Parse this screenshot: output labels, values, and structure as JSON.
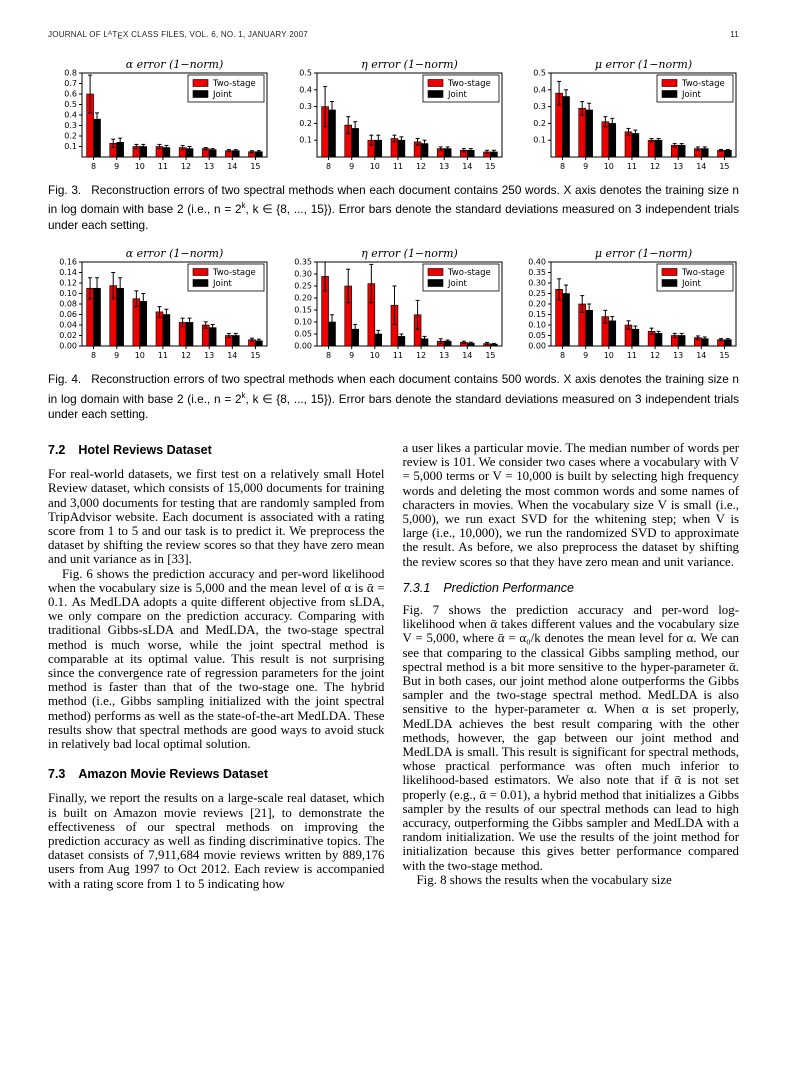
{
  "header": {
    "pre": "JOURNAL OF L",
    "a": "A",
    "t": "T",
    "e": "E",
    "post": "X CLASS FILES, VOL. 6, NO. 1, JANUARY 2007",
    "page": "11"
  },
  "figures": {
    "fig3": {
      "label": "Fig. 3.",
      "cap1": "Reconstruction errors of two spectral methods when each document contains 250 words. X axis denotes the training size n in log domain with base 2 (i.e., n = 2",
      "cap_sup": "k",
      "cap2": ", k ∈ {8, ..., 15}). Error bars denote the standard deviations measured on 3 independent trials under each setting."
    },
    "fig4": {
      "label": "Fig. 4.",
      "cap1": "Reconstruction errors of two spectral methods when each document contains 500 words. X axis denotes the training size n in log domain with base 2 (i.e., n = 2",
      "cap_sup": "k",
      "cap2": ", k ∈ {8, ..., 15}). Error bars denote the standard deviations measured on 3 independent trials under each setting."
    }
  },
  "chart_data": [
    {
      "figure": "fig3",
      "name": "chart-fig3-alpha-error",
      "type": "bar",
      "title": "α  error  (1−norm)",
      "categories": [
        "8",
        "9",
        "10",
        "11",
        "12",
        "13",
        "14",
        "15"
      ],
      "ylim": [
        0,
        0.8
      ],
      "yticks": [
        "0.1",
        "0.2",
        "0.3",
        "0.4",
        "0.5",
        "0.6",
        "0.7",
        "0.8"
      ],
      "legend_position": "top-right",
      "grid": false,
      "series": [
        {
          "name": "Two-stage",
          "color": "#ee0000",
          "values": [
            0.6,
            0.13,
            0.1,
            0.1,
            0.09,
            0.08,
            0.06,
            0.05
          ],
          "errors": [
            0.18,
            0.04,
            0.02,
            0.02,
            0.02,
            0.01,
            0.01,
            0.01
          ]
        },
        {
          "name": "Joint",
          "color": "#000000",
          "values": [
            0.36,
            0.14,
            0.1,
            0.09,
            0.08,
            0.07,
            0.06,
            0.05
          ],
          "errors": [
            0.06,
            0.04,
            0.02,
            0.02,
            0.02,
            0.01,
            0.01,
            0.01
          ]
        }
      ]
    },
    {
      "figure": "fig3",
      "name": "chart-fig3-eta-error",
      "type": "bar",
      "title": "η  error  (1−norm)",
      "categories": [
        "8",
        "9",
        "10",
        "11",
        "12",
        "13",
        "14",
        "15"
      ],
      "ylim": [
        0,
        0.5
      ],
      "yticks": [
        "0.1",
        "0.2",
        "0.3",
        "0.4",
        "0.5"
      ],
      "legend_position": "top-right",
      "grid": false,
      "series": [
        {
          "name": "Two-stage",
          "color": "#ee0000",
          "values": [
            0.3,
            0.19,
            0.1,
            0.11,
            0.09,
            0.05,
            0.04,
            0.03
          ],
          "errors": [
            0.12,
            0.05,
            0.03,
            0.02,
            0.02,
            0.01,
            0.01,
            0.01
          ]
        },
        {
          "name": "Joint",
          "color": "#000000",
          "values": [
            0.28,
            0.17,
            0.1,
            0.1,
            0.08,
            0.05,
            0.04,
            0.03
          ],
          "errors": [
            0.05,
            0.04,
            0.03,
            0.02,
            0.02,
            0.01,
            0.01,
            0.01
          ]
        }
      ]
    },
    {
      "figure": "fig3",
      "name": "chart-fig3-mu-error",
      "type": "bar",
      "title": "μ  error  (1−norm)",
      "categories": [
        "8",
        "9",
        "10",
        "11",
        "12",
        "13",
        "14",
        "15"
      ],
      "ylim": [
        0,
        0.5
      ],
      "yticks": [
        "0.1",
        "0.2",
        "0.3",
        "0.4",
        "0.5"
      ],
      "legend_position": "top-right",
      "grid": false,
      "series": [
        {
          "name": "Two-stage",
          "color": "#ee0000",
          "values": [
            0.38,
            0.29,
            0.21,
            0.15,
            0.1,
            0.07,
            0.05,
            0.04
          ],
          "errors": [
            0.07,
            0.04,
            0.03,
            0.02,
            0.01,
            0.01,
            0.01,
            0.005
          ]
        },
        {
          "name": "Joint",
          "color": "#000000",
          "values": [
            0.36,
            0.28,
            0.2,
            0.14,
            0.1,
            0.07,
            0.05,
            0.04
          ],
          "errors": [
            0.04,
            0.04,
            0.03,
            0.02,
            0.01,
            0.01,
            0.01,
            0.005
          ]
        }
      ]
    },
    {
      "figure": "fig4",
      "name": "chart-fig4-alpha-error",
      "type": "bar",
      "title": "α  error  (1−norm)",
      "categories": [
        "8",
        "9",
        "10",
        "11",
        "12",
        "13",
        "14",
        "15"
      ],
      "ylim": [
        0,
        0.16
      ],
      "yticks": [
        "0.00",
        "0.02",
        "0.04",
        "0.06",
        "0.08",
        "0.10",
        "0.12",
        "0.14",
        "0.16"
      ],
      "legend_position": "top-right",
      "grid": false,
      "series": [
        {
          "name": "Two-stage",
          "color": "#ee0000",
          "values": [
            0.11,
            0.115,
            0.09,
            0.065,
            0.045,
            0.04,
            0.02,
            0.012
          ],
          "errors": [
            0.02,
            0.025,
            0.015,
            0.01,
            0.008,
            0.006,
            0.004,
            0.003
          ]
        },
        {
          "name": "Joint",
          "color": "#000000",
          "values": [
            0.11,
            0.11,
            0.085,
            0.06,
            0.045,
            0.035,
            0.02,
            0.01
          ],
          "errors": [
            0.02,
            0.02,
            0.015,
            0.01,
            0.008,
            0.006,
            0.004,
            0.003
          ]
        }
      ]
    },
    {
      "figure": "fig4",
      "name": "chart-fig4-eta-error",
      "type": "bar",
      "title": "η  error  (1−norm)",
      "categories": [
        "8",
        "9",
        "10",
        "11",
        "12",
        "13",
        "14",
        "15"
      ],
      "ylim": [
        0,
        0.35
      ],
      "yticks": [
        "0.00",
        "0.05",
        "0.10",
        "0.15",
        "0.20",
        "0.25",
        "0.30",
        "0.35"
      ],
      "legend_position": "top-right",
      "grid": false,
      "series": [
        {
          "name": "Two-stage",
          "color": "#ee0000",
          "values": [
            0.29,
            0.25,
            0.26,
            0.17,
            0.13,
            0.02,
            0.015,
            0.01
          ],
          "errors": [
            0.06,
            0.07,
            0.08,
            0.08,
            0.06,
            0.01,
            0.005,
            0.005
          ]
        },
        {
          "name": "Joint",
          "color": "#000000",
          "values": [
            0.1,
            0.07,
            0.05,
            0.04,
            0.03,
            0.02,
            0.012,
            0.008
          ],
          "errors": [
            0.03,
            0.02,
            0.015,
            0.01,
            0.01,
            0.005,
            0.004,
            0.003
          ]
        }
      ]
    },
    {
      "figure": "fig4",
      "name": "chart-fig4-mu-error",
      "type": "bar",
      "title": "μ  error  (1−norm)",
      "categories": [
        "8",
        "9",
        "10",
        "11",
        "12",
        "13",
        "14",
        "15"
      ],
      "ylim": [
        0,
        0.4
      ],
      "yticks": [
        "0.00",
        "0.05",
        "0.10",
        "0.15",
        "0.20",
        "0.25",
        "0.30",
        "0.35",
        "0.40"
      ],
      "legend_position": "top-right",
      "grid": false,
      "series": [
        {
          "name": "Two-stage",
          "color": "#ee0000",
          "values": [
            0.27,
            0.2,
            0.14,
            0.1,
            0.07,
            0.05,
            0.04,
            0.03
          ],
          "errors": [
            0.05,
            0.04,
            0.03,
            0.02,
            0.015,
            0.01,
            0.008,
            0.005
          ]
        },
        {
          "name": "Joint",
          "color": "#000000",
          "values": [
            0.25,
            0.17,
            0.12,
            0.08,
            0.06,
            0.05,
            0.035,
            0.03
          ],
          "errors": [
            0.04,
            0.03,
            0.02,
            0.015,
            0.01,
            0.01,
            0.008,
            0.005
          ]
        }
      ]
    }
  ],
  "columns": {
    "left": [
      {
        "kind": "h2",
        "num": "7.2",
        "text": "Hotel Reviews Dataset"
      },
      {
        "kind": "p",
        "indent": false,
        "text": "For real-world datasets, we first test on a relatively small Hotel Review dataset, which consists of 15,000 documents for training and 3,000 documents for testing that are randomly sampled from TripAdvisor website. Each document is associated with a rating score from 1 to 5 and our task is to predict it. We preprocess the dataset by shifting the review scores so that they have zero mean and unit variance as in [33]."
      },
      {
        "kind": "p",
        "indent": true,
        "text": "Fig. 6 shows the prediction accuracy and per-word likelihood when the vocabulary size is 5,000 and the mean level of α is ᾱ = 0.1. As MedLDA adopts a quite different objective from sLDA, we only compare on the prediction accuracy. Comparing with traditional Gibbs-sLDA and MedLDA, the two-stage spectral method is much worse, while the joint spectral method is comparable at its optimal value. This result is not surprising since the convergence rate of regression parameters for the joint method is faster than that of the two-stage one. The hybrid method (i.e., Gibbs sampling initialized with the joint spectral method) performs as well as the state-of-the-art MedLDA. These results show that spectral methods are good ways to avoid stuck in relatively bad local optimal solution."
      },
      {
        "kind": "h2",
        "num": "7.3",
        "text": "Amazon Movie Reviews Dataset"
      },
      {
        "kind": "p",
        "indent": false,
        "text": "Finally, we report the results on a large-scale real dataset, which is built on Amazon movie reviews [21], to demonstrate the effectiveness of our spectral methods on improving the prediction accuracy as well as finding discriminative topics. The dataset consists of 7,911,684 movie reviews written by 889,176 users from Aug 1997 to Oct 2012. Each review is accompanied with a rating score from 1 to 5 indicating how"
      }
    ],
    "right": [
      {
        "kind": "p",
        "indent": false,
        "text": "a user likes a particular movie. The median number of words per review is 101. We consider two cases where a vocabulary with V = 5,000 terms or V = 10,000 is built by selecting high frequency words and deleting the most common words and some names of characters in movies. When the vocabulary size V is small (i.e., 5,000), we run exact SVD for the whitening step; when V is large (i.e., 10,000), we run the randomized SVD to approximate the result. As before, we also preprocess the dataset by shifting the review scores so that they have zero mean and unit variance."
      },
      {
        "kind": "h3",
        "num": "7.3.1",
        "text": "Prediction Performance"
      },
      {
        "kind": "p",
        "indent": false,
        "text": "Fig. 7 shows the prediction accuracy and per-word log-likelihood when ᾱ takes different values and the vocabulary size V = 5,000, where ᾱ = α₀/k denotes the mean level for α. We can see that comparing to the classical Gibbs sampling method, our spectral method is a bit more sensitive to the hyper-parameter ᾱ. But in both cases, our joint method alone outperforms the Gibbs sampler and the two-stage spectral method. MedLDA is also sensitive to the hyper-parameter α. When α is set properly, MedLDA achieves the best result comparing with the other methods, however, the gap between our joint method and MedLDA is small. This result is significant for spectral methods, whose practical performance was often much inferior to likelihood-based estimators. We also note that if ᾱ is not set properly (e.g., ᾱ = 0.01), a hybrid method that initializes a Gibbs sampler by the results of our spectral methods can lead to high accuracy, outperforming the Gibbs sampler and MedLDA with a random initialization. We use the results of the joint method for initialization because this gives better performance compared with the two-stage method."
      },
      {
        "kind": "p",
        "indent": true,
        "text": "Fig. 8 shows the results when the vocabulary size"
      }
    ]
  }
}
